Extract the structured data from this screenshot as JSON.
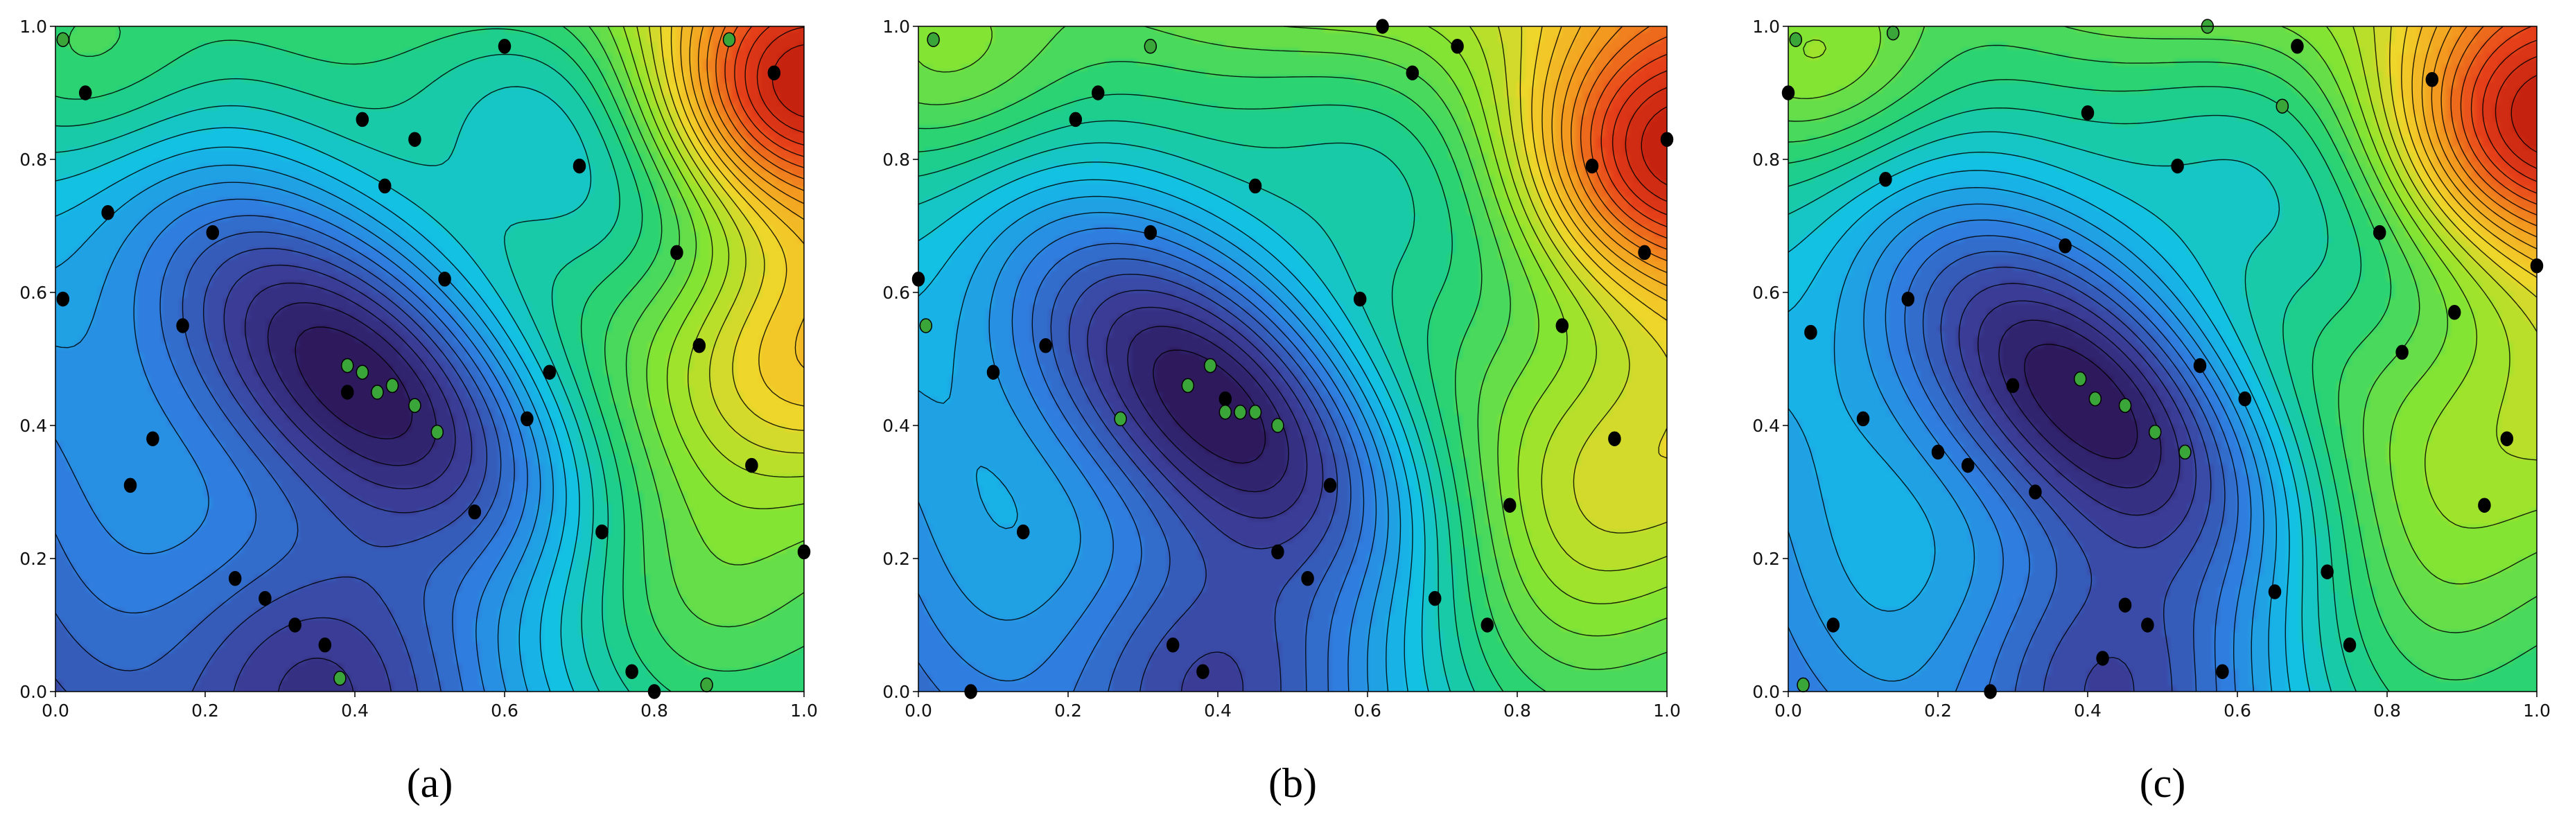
{
  "figure": {
    "panel_labels": [
      "(a)",
      "(b)",
      "(c)"
    ]
  },
  "chart_data": [
    {
      "type": "contour",
      "label": "(a)",
      "xlim": [
        0,
        1
      ],
      "ylim": [
        0,
        1
      ],
      "x_ticks": [
        "0.0",
        "0.2",
        "0.4",
        "0.6",
        "0.8",
        "1.0"
      ],
      "y_ticks": [
        "0.0",
        "0.2",
        "0.4",
        "0.6",
        "0.8",
        "1.0"
      ],
      "colormap": [
        "#2b1352",
        "#3b3f9a",
        "#2f7fe0",
        "#12c1e8",
        "#1fd17a",
        "#8fe62c",
        "#f2d52a",
        "#f39a1f",
        "#e8421a",
        "#c01d0e"
      ],
      "contour_line_color": "#000000",
      "field": {
        "base": 0.22,
        "wells": [
          {
            "x": 0.45,
            "y": 0.45,
            "amp": -0.42,
            "sxx": 20,
            "syy": 20,
            "sxy": 24
          },
          {
            "x": 0.34,
            "y": 0.03,
            "amp": -0.18,
            "sxx": 25,
            "syy": 25,
            "sxy": 0
          },
          {
            "x": 0.68,
            "y": 0.84,
            "amp": -0.22,
            "sxx": 18,
            "syy": 18,
            "sxy": 18
          },
          {
            "x": 0.97,
            "y": 0.9,
            "amp": 0.45,
            "sxx": 30,
            "syy": 30,
            "sxy": 0
          },
          {
            "x": 0.98,
            "y": 0.5,
            "amp": 0.22,
            "sxx": 28,
            "syy": 28,
            "sxy": 0
          },
          {
            "x": 0.05,
            "y": 0.95,
            "amp": 0.1,
            "sxx": 40,
            "syy": 40,
            "sxy": 0
          },
          {
            "x": 0.85,
            "y": 0.15,
            "amp": 0.15,
            "sxx": 20,
            "syy": 20,
            "sxy": 0
          }
        ],
        "slope": [
          0.35,
          0.3
        ],
        "wave": 0.035
      },
      "samples_black": [
        [
          0.01,
          0.59
        ],
        [
          0.04,
          0.9
        ],
        [
          0.07,
          0.72
        ],
        [
          0.1,
          0.31
        ],
        [
          0.13,
          0.38
        ],
        [
          0.17,
          0.55
        ],
        [
          0.21,
          0.69
        ],
        [
          0.24,
          0.17
        ],
        [
          0.28,
          0.14
        ],
        [
          0.32,
          0.1
        ],
        [
          0.36,
          0.07
        ],
        [
          0.39,
          0.45
        ],
        [
          0.41,
          0.86
        ],
        [
          0.44,
          0.76
        ],
        [
          0.48,
          0.83
        ],
        [
          0.52,
          0.62
        ],
        [
          0.56,
          0.27
        ],
        [
          0.6,
          0.97
        ],
        [
          0.63,
          0.41
        ],
        [
          0.66,
          0.48
        ],
        [
          0.7,
          0.79
        ],
        [
          0.73,
          0.24
        ],
        [
          0.77,
          0.03
        ],
        [
          0.8,
          0.0
        ],
        [
          0.83,
          0.66
        ],
        [
          0.86,
          0.52
        ],
        [
          0.93,
          0.34
        ],
        [
          0.96,
          0.93
        ],
        [
          1.0,
          0.21
        ]
      ],
      "samples_green": [
        [
          0.01,
          0.98
        ],
        [
          0.38,
          0.02
        ],
        [
          0.39,
          0.49
        ],
        [
          0.41,
          0.48
        ],
        [
          0.43,
          0.45
        ],
        [
          0.45,
          0.46
        ],
        [
          0.48,
          0.43
        ],
        [
          0.51,
          0.39
        ],
        [
          0.87,
          0.01
        ],
        [
          0.9,
          0.98
        ]
      ]
    },
    {
      "type": "contour",
      "label": "(b)",
      "xlim": [
        0,
        1
      ],
      "ylim": [
        0,
        1
      ],
      "x_ticks": [
        "0.0",
        "0.2",
        "0.4",
        "0.6",
        "0.8",
        "1.0"
      ],
      "y_ticks": [
        "0.0",
        "0.2",
        "0.4",
        "0.6",
        "0.8",
        "1.0"
      ],
      "colormap": [
        "#2b1352",
        "#3b3f9a",
        "#2f7fe0",
        "#12c1e8",
        "#1fd17a",
        "#8fe62c",
        "#f2d52a",
        "#f39a1f",
        "#e8421a",
        "#c01d0e"
      ],
      "contour_line_color": "#000000",
      "field": {
        "base": 0.24,
        "wells": [
          {
            "x": 0.43,
            "y": 0.42,
            "amp": -0.4,
            "sxx": 20,
            "syy": 20,
            "sxy": 24
          },
          {
            "x": 0.38,
            "y": 0.03,
            "amp": -0.16,
            "sxx": 25,
            "syy": 25,
            "sxy": 0
          },
          {
            "x": 0.65,
            "y": 0.77,
            "amp": -0.18,
            "sxx": 16,
            "syy": 16,
            "sxy": 16
          },
          {
            "x": 0.98,
            "y": 0.8,
            "amp": 0.38,
            "sxx": 26,
            "syy": 26,
            "sxy": 0
          },
          {
            "x": 0.98,
            "y": 0.35,
            "amp": 0.12,
            "sxx": 26,
            "syy": 26,
            "sxy": 0
          },
          {
            "x": 0.05,
            "y": 0.95,
            "amp": 0.1,
            "sxx": 40,
            "syy": 40,
            "sxy": 0
          },
          {
            "x": 0.85,
            "y": 0.15,
            "amp": 0.12,
            "sxx": 20,
            "syy": 20,
            "sxy": 0
          }
        ],
        "slope": [
          0.3,
          0.28
        ],
        "wave": 0.035
      },
      "samples_black": [
        [
          0.0,
          0.62
        ],
        [
          0.07,
          0.0
        ],
        [
          0.1,
          0.48
        ],
        [
          0.14,
          0.24
        ],
        [
          0.17,
          0.52
        ],
        [
          0.21,
          0.86
        ],
        [
          0.24,
          0.9
        ],
        [
          0.31,
          0.69
        ],
        [
          0.34,
          0.07
        ],
        [
          0.38,
          0.03
        ],
        [
          0.41,
          0.44
        ],
        [
          0.45,
          0.76
        ],
        [
          0.48,
          0.21
        ],
        [
          0.52,
          0.17
        ],
        [
          0.55,
          0.31
        ],
        [
          0.59,
          0.59
        ],
        [
          0.62,
          1.0
        ],
        [
          0.66,
          0.93
        ],
        [
          0.69,
          0.14
        ],
        [
          0.72,
          0.97
        ],
        [
          0.76,
          0.1
        ],
        [
          0.79,
          0.28
        ],
        [
          0.86,
          0.55
        ],
        [
          0.9,
          0.79
        ],
        [
          0.93,
          0.38
        ],
        [
          0.97,
          0.66
        ],
        [
          1.0,
          0.83
        ]
      ],
      "samples_green": [
        [
          0.01,
          0.55
        ],
        [
          0.02,
          0.98
        ],
        [
          0.27,
          0.41
        ],
        [
          0.31,
          0.97
        ],
        [
          0.36,
          0.46
        ],
        [
          0.39,
          0.49
        ],
        [
          0.41,
          0.42
        ],
        [
          0.43,
          0.42
        ],
        [
          0.45,
          0.42
        ],
        [
          0.48,
          0.4
        ]
      ]
    },
    {
      "type": "contour",
      "label": "(c)",
      "xlim": [
        0,
        1
      ],
      "ylim": [
        0,
        1
      ],
      "x_ticks": [
        "0.0",
        "0.2",
        "0.4",
        "0.6",
        "0.8",
        "1.0"
      ],
      "y_ticks": [
        "0.0",
        "0.2",
        "0.4",
        "0.6",
        "0.8",
        "1.0"
      ],
      "colormap": [
        "#2b1352",
        "#3b3f9a",
        "#2f7fe0",
        "#12c1e8",
        "#1fd17a",
        "#8fe62c",
        "#f2d52a",
        "#f39a1f",
        "#e8421a",
        "#c01d0e"
      ],
      "contour_line_color": "#000000",
      "field": {
        "base": 0.24,
        "wells": [
          {
            "x": 0.44,
            "y": 0.42,
            "amp": -0.42,
            "sxx": 20,
            "syy": 20,
            "sxy": 24
          },
          {
            "x": 0.42,
            "y": 0.03,
            "amp": -0.16,
            "sxx": 25,
            "syy": 25,
            "sxy": 0
          },
          {
            "x": 0.65,
            "y": 0.77,
            "amp": -0.2,
            "sxx": 16,
            "syy": 16,
            "sxy": 16
          },
          {
            "x": 0.98,
            "y": 0.85,
            "amp": 0.42,
            "sxx": 26,
            "syy": 26,
            "sxy": 0
          },
          {
            "x": 0.98,
            "y": 0.4,
            "amp": 0.1,
            "sxx": 26,
            "syy": 26,
            "sxy": 0
          },
          {
            "x": 0.05,
            "y": 0.95,
            "amp": 0.14,
            "sxx": 40,
            "syy": 40,
            "sxy": 0
          },
          {
            "x": 0.85,
            "y": 0.15,
            "amp": 0.12,
            "sxx": 20,
            "syy": 20,
            "sxy": 0
          }
        ],
        "slope": [
          0.3,
          0.28
        ],
        "wave": 0.045
      },
      "samples_black": [
        [
          0.0,
          0.9
        ],
        [
          0.03,
          0.54
        ],
        [
          0.06,
          0.1
        ],
        [
          0.1,
          0.41
        ],
        [
          0.13,
          0.77
        ],
        [
          0.16,
          0.59
        ],
        [
          0.2,
          0.36
        ],
        [
          0.24,
          0.34
        ],
        [
          0.27,
          0.0
        ],
        [
          0.3,
          0.46
        ],
        [
          0.33,
          0.3
        ],
        [
          0.37,
          0.67
        ],
        [
          0.4,
          0.87
        ],
        [
          0.42,
          0.05
        ],
        [
          0.45,
          0.13
        ],
        [
          0.48,
          0.1
        ],
        [
          0.52,
          0.79
        ],
        [
          0.55,
          0.49
        ],
        [
          0.58,
          0.03
        ],
        [
          0.61,
          0.44
        ],
        [
          0.65,
          0.15
        ],
        [
          0.68,
          0.97
        ],
        [
          0.72,
          0.18
        ],
        [
          0.75,
          0.07
        ],
        [
          0.79,
          0.69
        ],
        [
          0.82,
          0.51
        ],
        [
          0.86,
          0.92
        ],
        [
          0.89,
          0.57
        ],
        [
          0.93,
          0.28
        ],
        [
          0.96,
          0.38
        ],
        [
          1.0,
          0.64
        ]
      ],
      "samples_green": [
        [
          0.01,
          0.98
        ],
        [
          0.02,
          0.01
        ],
        [
          0.14,
          0.99
        ],
        [
          0.39,
          0.47
        ],
        [
          0.41,
          0.44
        ],
        [
          0.45,
          0.43
        ],
        [
          0.49,
          0.39
        ],
        [
          0.53,
          0.36
        ],
        [
          0.56,
          1.0
        ],
        [
          0.66,
          0.88
        ]
      ]
    }
  ]
}
